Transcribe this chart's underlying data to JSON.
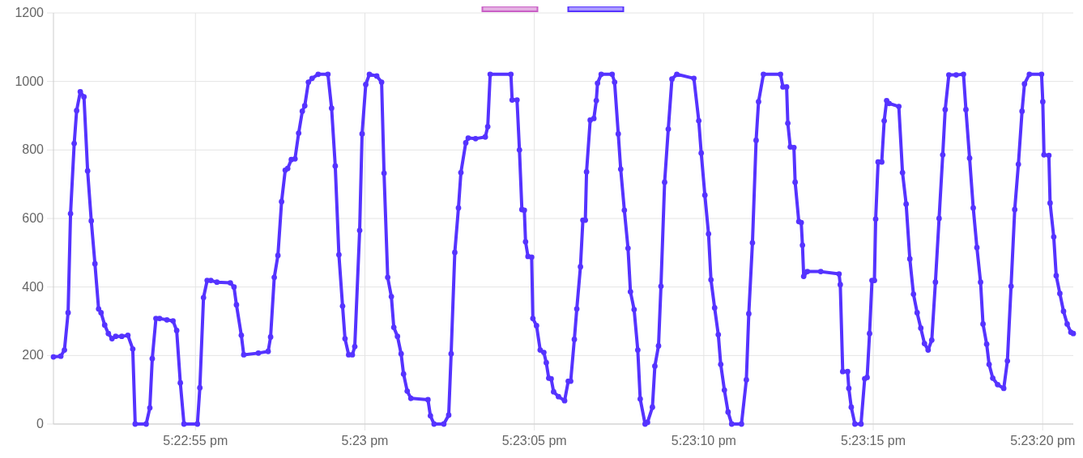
{
  "chart_data": {
    "type": "line",
    "xlim": [
      17.38078,
      17.38914
    ],
    "xticks": [
      {
        "value": 17.381944,
        "label": "5:22:55 pm"
      },
      {
        "value": 17.383333,
        "label": "5:23 pm"
      },
      {
        "value": 17.384722,
        "label": "5:23:05 pm"
      },
      {
        "value": 17.386111,
        "label": "5:23:10 pm"
      },
      {
        "value": 17.3875,
        "label": "5:23:15 pm"
      },
      {
        "value": 17.388889,
        "label": "5:23:20 pm"
      }
    ],
    "ylim": [
      0,
      1200
    ],
    "yticks": [
      0,
      200,
      400,
      600,
      800,
      1000,
      1200
    ],
    "grid": true,
    "marker": "circle",
    "line_style": "solid",
    "x": [
      17.38078,
      17.38084,
      17.38087,
      17.3809,
      17.38092,
      17.38095,
      17.38097,
      17.381,
      17.38103,
      17.38106,
      17.38109,
      17.38112,
      17.38115,
      17.38117,
      17.3812,
      17.38123,
      17.38126,
      17.38129,
      17.38134,
      17.38139,
      17.38143,
      17.38145,
      17.38154,
      17.38157,
      17.38159,
      17.38162,
      17.38165,
      17.38171,
      17.38176,
      17.38179,
      17.38182,
      17.38185,
      17.38196,
      17.38198,
      17.38201,
      17.38204,
      17.38207,
      17.38212,
      17.38223,
      17.38226,
      17.38228,
      17.38232,
      17.38234,
      17.38246,
      17.38254,
      17.38256,
      17.38259,
      17.38262,
      17.38265,
      17.38268,
      17.3827,
      17.38273,
      17.38276,
      17.38279,
      17.38282,
      17.38284,
      17.38287,
      17.3829,
      17.38295,
      17.38303,
      17.38306,
      17.38309,
      17.38312,
      17.38315,
      17.38317,
      17.3832,
      17.38323,
      17.38325,
      17.38329,
      17.38331,
      17.38334,
      17.38337,
      17.38343,
      17.38347,
      17.38349,
      17.38352,
      17.38355,
      17.38357,
      17.3836,
      17.38363,
      17.38365,
      17.38368,
      17.38371,
      17.38385,
      17.38387,
      17.3839,
      17.38398,
      17.38402,
      17.38404,
      17.38407,
      17.3841,
      17.38412,
      17.38416,
      17.38418,
      17.38424,
      17.38432,
      17.38434,
      17.38436,
      17.38453,
      17.38454,
      17.38458,
      17.3846,
      17.38462,
      17.38464,
      17.38465,
      17.38467,
      17.3847,
      17.38471,
      17.38474,
      17.38477,
      17.3848,
      17.38482,
      17.38484,
      17.38486,
      17.38488,
      17.38492,
      17.38497,
      17.385,
      17.38502,
      17.38505,
      17.38507,
      17.3851,
      17.38512,
      17.38514,
      17.38515,
      17.38518,
      17.38521,
      17.38523,
      17.38524,
      17.38527,
      17.38536,
      17.38538,
      17.38541,
      17.38543,
      17.38546,
      17.38549,
      17.38551,
      17.38554,
      17.38557,
      17.38559,
      17.38563,
      17.38565,
      17.38569,
      17.38571,
      17.38574,
      17.38576,
      17.38579,
      17.38582,
      17.38585,
      17.38589,
      17.38603,
      17.38607,
      17.38609,
      17.38612,
      17.38615,
      17.38617,
      17.3862,
      17.38623,
      17.38625,
      17.38628,
      17.38631,
      17.38634,
      17.38642,
      17.38646,
      17.38648,
      17.38651,
      17.38654,
      17.38656,
      17.3866,
      17.38674,
      17.38676,
      17.38679,
      17.3868,
      17.38682,
      17.38685,
      17.38686,
      17.38689,
      17.38691,
      17.38692,
      17.38693,
      17.38696,
      17.38707,
      17.38722,
      17.38723,
      17.38725,
      17.38729,
      17.3873,
      17.38732,
      17.38735,
      17.3874,
      17.38743,
      17.38745,
      17.38747,
      17.38749,
      17.38751,
      17.38752,
      17.38754,
      17.38757,
      17.38759,
      17.38761,
      17.38763,
      17.38771,
      17.38774,
      17.38777,
      17.3878,
      17.38783,
      17.38786,
      17.38789,
      17.38792,
      17.38795,
      17.38798,
      17.38801,
      17.38804,
      17.38807,
      17.38809,
      17.38812,
      17.38818,
      17.38824,
      17.38826,
      17.38829,
      17.38832,
      17.38835,
      17.38838,
      17.3884,
      17.38843,
      17.38845,
      17.38848,
      17.38852,
      17.38857,
      17.3886,
      17.38863,
      17.38866,
      17.38869,
      17.38872,
      17.38874,
      17.38878,
      17.38888,
      17.38889,
      17.3889,
      17.38894,
      17.38895,
      17.38898,
      17.389,
      17.38903,
      17.38906,
      17.38909,
      17.38912,
      17.38914
    ],
    "series": [
      {
        "color": "#5533ff",
        "values": [
          196,
          198,
          216,
          325,
          614,
          819,
          915,
          970,
          955,
          739,
          593,
          468,
          336,
          325,
          289,
          264,
          249,
          256,
          256,
          259,
          219,
          0,
          0,
          47,
          191,
          308,
          308,
          304,
          301,
          273,
          120,
          0,
          0,
          106,
          369,
          419,
          419,
          414,
          412,
          400,
          348,
          259,
          202,
          207,
          212,
          254,
          428,
          492,
          649,
          741,
          746,
          772,
          774,
          849,
          913,
          929,
          998,
          1009,
          1021,
          1021,
          922,
          753,
          494,
          344,
          249,
          202,
          202,
          226,
          565,
          847,
          991,
          1021,
          1016,
          998,
          732,
          428,
          372,
          282,
          256,
          205,
          146,
          96,
          75,
          71,
          24,
          0,
          0,
          26,
          205,
          501,
          631,
          734,
          821,
          835,
          833,
          838,
          868,
          1021,
          1021,
          946,
          946,
          800,
          626,
          624,
          532,
          489,
          487,
          308,
          287,
          216,
          209,
          179,
          134,
          132,
          94,
          80,
          68,
          125,
          125,
          247,
          336,
          459,
          595,
          595,
          736,
          887,
          892,
          944,
          995,
          1021,
          1021,
          998,
          847,
          744,
          624,
          513,
          386,
          334,
          216,
          73,
          0,
          5,
          49,
          169,
          228,
          402,
          706,
          861,
          1007,
          1021,
          1009,
          885,
          791,
          668,
          555,
          421,
          339,
          261,
          174,
          99,
          35,
          0,
          0,
          129,
          322,
          529,
          828,
          941,
          1021,
          1021,
          984,
          984,
          878,
          809,
          807,
          706,
          591,
          588,
          522,
          431,
          445,
          445,
          438,
          407,
          153,
          153,
          104,
          49,
          0,
          0,
          132,
          136,
          264,
          419,
          419,
          598,
          765,
          765,
          885,
          944,
          936,
          927,
          734,
          642,
          482,
          379,
          325,
          280,
          235,
          216,
          245,
          414,
          600,
          786,
          918,
          1019,
          1019,
          1021,
          918,
          776,
          631,
          515,
          414,
          292,
          233,
          174,
          134,
          115,
          104,
          184,
          402,
          626,
          758,
          913,
          993,
          1021,
          1021,
          941,
          786,
          784,
          645,
          546,
          433,
          381,
          329,
          292,
          268,
          264
        ]
      }
    ]
  }
}
